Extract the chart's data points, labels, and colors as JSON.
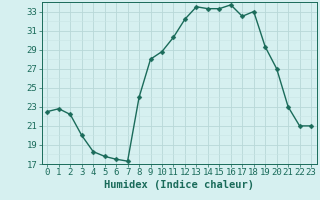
{
  "x": [
    0,
    1,
    2,
    3,
    4,
    5,
    6,
    7,
    8,
    9,
    10,
    11,
    12,
    13,
    14,
    15,
    16,
    17,
    18,
    19,
    20,
    21,
    22,
    23
  ],
  "y": [
    22.5,
    22.8,
    22.2,
    20.0,
    18.3,
    17.8,
    17.5,
    17.3,
    24.0,
    28.0,
    28.8,
    30.3,
    32.2,
    33.5,
    33.3,
    33.3,
    33.7,
    32.5,
    33.0,
    29.3,
    27.0,
    23.0,
    21.0,
    21.0
  ],
  "line_color": "#1a6b5a",
  "marker": "D",
  "marker_size": 2.5,
  "bg_color": "#d6f0f0",
  "grid_major_color": "#b8d8d8",
  "grid_minor_color": "#c8e4e4",
  "xlabel": "Humidex (Indice chaleur)",
  "ylim": [
    17,
    34
  ],
  "xlim": [
    -0.5,
    23.5
  ],
  "yticks": [
    17,
    19,
    21,
    23,
    25,
    27,
    29,
    31,
    33
  ],
  "xticks": [
    0,
    1,
    2,
    3,
    4,
    5,
    6,
    7,
    8,
    9,
    10,
    11,
    12,
    13,
    14,
    15,
    16,
    17,
    18,
    19,
    20,
    21,
    22,
    23
  ],
  "tick_color": "#1a6b5a",
  "label_fontsize": 7.5,
  "tick_fontsize": 6.5,
  "line_width": 1.0
}
